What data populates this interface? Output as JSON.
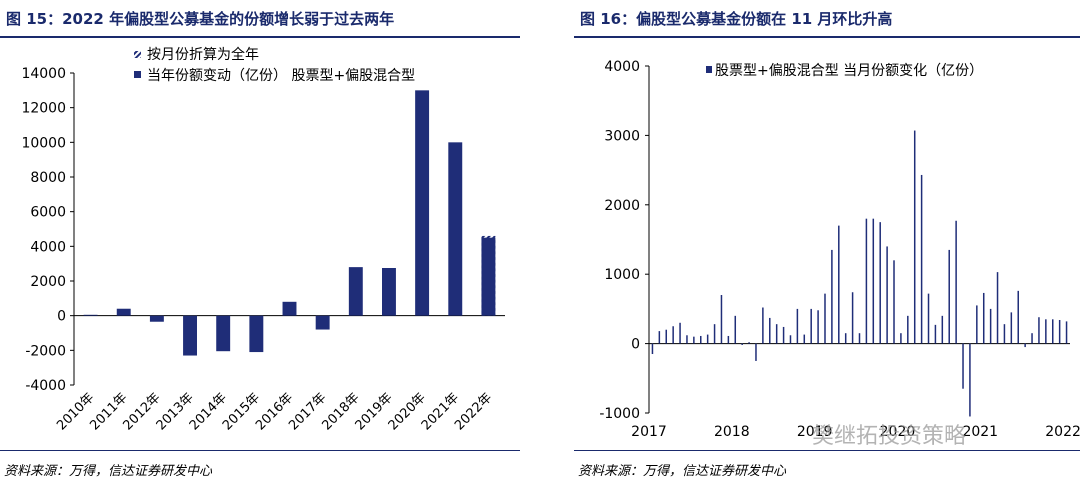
{
  "left_panel": {
    "title": "图 15：2022 年偏股型公募基金的份额增长弱于过去两年",
    "source": "资料来源：万得，信达证券研发中心"
  },
  "right_panel": {
    "title": "图 16：偏股型公募基金份额在 11 月环比升高",
    "source": "资料来源：万得，信达证券研发中心"
  },
  "watermark": "樊继拓投资策略",
  "colors": {
    "bar": "#1f2d78",
    "title": "#1a2a6c"
  },
  "chart_data": [
    {
      "type": "bar",
      "title": "",
      "xlabel": "",
      "ylabel": "",
      "ylim": [
        -4000,
        14000
      ],
      "yticks": [
        -4000,
        -2000,
        0,
        2000,
        4000,
        6000,
        8000,
        10000,
        12000,
        14000
      ],
      "legend_position": "top-left",
      "categories": [
        "2010年",
        "2011年",
        "2012年",
        "2013年",
        "2014年",
        "2015年",
        "2016年",
        "2017年",
        "2018年",
        "2019年",
        "2020年",
        "2021年",
        "2022年"
      ],
      "series": [
        {
          "name": "当年份额变动（亿份） 股票型+偏股混合型",
          "values": [
            50,
            400,
            -350,
            -2300,
            -2050,
            -2100,
            800,
            -800,
            2800,
            2750,
            13000,
            10000,
            4500
          ]
        },
        {
          "name": "按月份折算为全年",
          "values": [
            null,
            null,
            null,
            null,
            null,
            null,
            null,
            null,
            null,
            null,
            null,
            null,
            4600
          ]
        }
      ]
    },
    {
      "type": "bar",
      "title": "",
      "xlabel": "",
      "ylabel": "",
      "ylim": [
        -1000,
        4000
      ],
      "yticks": [
        -1000,
        0,
        1000,
        2000,
        3000,
        4000
      ],
      "x_tick_labels": [
        "2017",
        "2018",
        "2019",
        "2020",
        "2021",
        "2022"
      ],
      "x_start": "2017-01",
      "legend_position": "top",
      "series": [
        {
          "name": "股票型+偏股混合型 当月份额变化（亿份）",
          "values": [
            -150,
            180,
            200,
            250,
            300,
            120,
            100,
            110,
            130,
            280,
            700,
            110,
            400,
            -20,
            20,
            -250,
            520,
            370,
            280,
            240,
            120,
            500,
            130,
            500,
            480,
            720,
            1350,
            1700,
            150,
            740,
            150,
            1800,
            1800,
            1750,
            1400,
            1200,
            150,
            400,
            3070,
            2430,
            720,
            270,
            400,
            1350,
            1770,
            -650,
            -1050,
            550,
            730,
            500,
            1030,
            280,
            450,
            760,
            -50,
            150,
            380,
            350,
            350,
            340,
            320
          ]
        }
      ]
    }
  ]
}
